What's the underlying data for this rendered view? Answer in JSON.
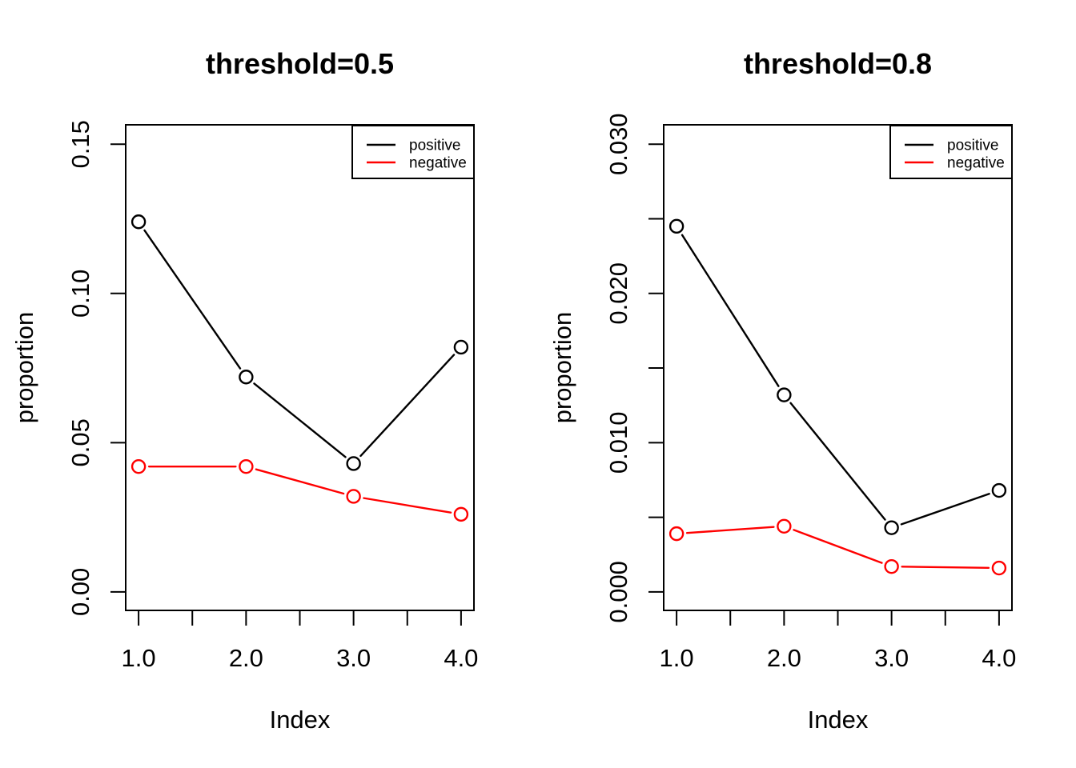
{
  "figure": {
    "background": "#ffffff",
    "text_color": "#000000"
  },
  "chart_data": [
    {
      "type": "line",
      "title": "threshold=0.5",
      "xlabel": "Index",
      "ylabel": "proportion",
      "x": [
        1,
        2,
        3,
        4
      ],
      "series": [
        {
          "name": "positive",
          "color": "#000000",
          "values": [
            0.124,
            0.072,
            0.043,
            0.082
          ]
        },
        {
          "name": "negative",
          "color": "#FF0000",
          "values": [
            0.042,
            0.042,
            0.032,
            0.026
          ]
        }
      ],
      "xlim": [
        0.88,
        4.12
      ],
      "ylim": [
        -0.0062,
        0.1565
      ],
      "x_ticks": [
        1,
        1.5,
        2,
        2.5,
        3,
        3.5,
        4
      ],
      "x_tick_labels": [
        "1.0",
        "",
        "2.0",
        "",
        "3.0",
        "",
        "4.0"
      ],
      "y_ticks": [
        0,
        0.05,
        0.1,
        0.15
      ],
      "y_tick_labels": [
        "0.00",
        "0.05",
        "0.10",
        "0.15"
      ],
      "grid": false,
      "marker": "open-circle",
      "legend": {
        "position": "topright",
        "entries": [
          "positive",
          "negative"
        ],
        "colors": [
          "#000000",
          "#FF0000"
        ]
      }
    },
    {
      "type": "line",
      "title": "threshold=0.8",
      "xlabel": "Index",
      "ylabel": "proportion",
      "x": [
        1,
        2,
        3,
        4
      ],
      "series": [
        {
          "name": "positive",
          "color": "#000000",
          "values": [
            0.0245,
            0.0132,
            0.0043,
            0.0068
          ]
        },
        {
          "name": "negative",
          "color": "#FF0000",
          "values": [
            0.0039,
            0.0044,
            0.0017,
            0.0016
          ]
        }
      ],
      "xlim": [
        0.88,
        4.12
      ],
      "ylim": [
        -0.00124,
        0.0313
      ],
      "x_ticks": [
        1,
        1.5,
        2,
        2.5,
        3,
        3.5,
        4
      ],
      "x_tick_labels": [
        "1.0",
        "",
        "2.0",
        "",
        "3.0",
        "",
        "4.0"
      ],
      "y_ticks": [
        0,
        0.005,
        0.01,
        0.015,
        0.02,
        0.025,
        0.03
      ],
      "y_tick_labels": [
        "0.000",
        "",
        "0.010",
        "",
        "0.020",
        "",
        "0.030"
      ],
      "grid": false,
      "marker": "open-circle",
      "legend": {
        "position": "topright",
        "entries": [
          "positive",
          "negative"
        ],
        "colors": [
          "#000000",
          "#FF0000"
        ]
      }
    }
  ]
}
